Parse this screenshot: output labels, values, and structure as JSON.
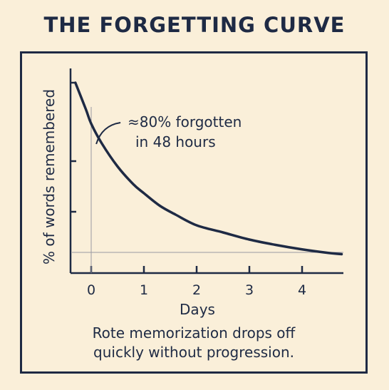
{
  "title": "THE FORGETTING CURVE",
  "caption": "Rote memorization drops off\n quickly without progression.",
  "colors": {
    "background": "#faefd9",
    "ink": "#1e2a44",
    "guide": "#9a9aa3"
  },
  "chart_data": {
    "type": "line",
    "title": "THE FORGETTING CURVE",
    "xlabel": "Days",
    "ylabel": "% of words remembered",
    "x_ticks": [
      0,
      1,
      2,
      3,
      4
    ],
    "xlim": [
      -0.4,
      4.75
    ],
    "ylim": [
      0,
      100
    ],
    "grid": false,
    "series": [
      {
        "x": [
          -0.3,
          -0.1,
          0.0,
          0.2,
          0.5,
          0.8,
          1.0,
          1.3,
          1.6,
          2.0,
          2.5,
          3.0,
          3.5,
          4.0,
          4.5,
          4.75
        ],
        "y": [
          100,
          85,
          77,
          66,
          53,
          43,
          38,
          31,
          26,
          20,
          16,
          12,
          9,
          6.5,
          4.5,
          3.8
        ]
      }
    ],
    "annotation": {
      "line1": "≈80% forgotten",
      "line2": "in 48 hours",
      "x": 0.15,
      "y": 68
    }
  }
}
